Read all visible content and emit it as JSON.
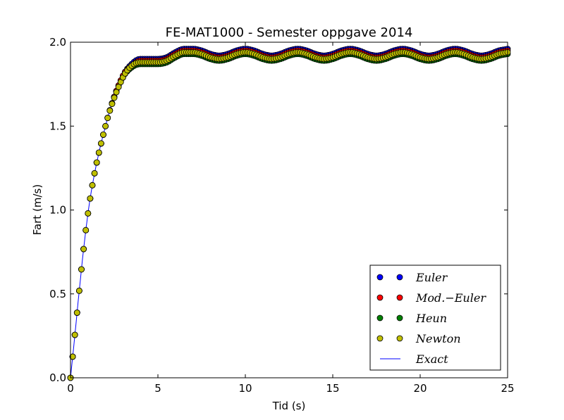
{
  "chart_data": {
    "type": "scatter",
    "title": "FE-MAT1000 - Semester oppgave 2014",
    "xlabel": "Tid (s)",
    "ylabel": "Fart (m/s)",
    "xlim": [
      0,
      25
    ],
    "ylim": [
      0.0,
      2.0
    ],
    "xticks": [
      0,
      5,
      10,
      15,
      20,
      25
    ],
    "xtick_labels": [
      "0",
      "5",
      "10",
      "15",
      "20",
      "25"
    ],
    "yticks": [
      0.0,
      0.5,
      1.0,
      1.5,
      2.0
    ],
    "ytick_labels": [
      "0.0",
      "0.5",
      "1.0",
      "1.5",
      "2.0"
    ],
    "grid": false,
    "legend_position": "lower-right",
    "x": [
      0,
      1,
      2,
      3,
      3.5,
      4,
      4.5,
      5,
      5.5,
      6,
      6.5,
      7,
      7.5,
      8,
      8.5,
      9,
      9.5,
      10,
      10.5,
      11,
      11.5,
      12,
      12.5,
      13,
      13.5,
      14,
      14.5,
      15,
      15.5,
      16,
      16.5,
      17,
      17.5,
      18,
      18.5,
      19,
      19.5,
      20,
      20.5,
      21,
      21.5,
      22,
      22.5,
      23,
      23.5,
      24,
      24.5,
      25
    ],
    "series": [
      {
        "name": "Euler",
        "style": "markers",
        "color": "#0000ff",
        "values": [
          0.0,
          0.98,
          1.5,
          1.8,
          1.87,
          1.9,
          1.9,
          1.9,
          1.91,
          1.94,
          1.96,
          1.96,
          1.95,
          1.93,
          1.92,
          1.93,
          1.95,
          1.96,
          1.95,
          1.93,
          1.92,
          1.93,
          1.95,
          1.96,
          1.95,
          1.93,
          1.92,
          1.93,
          1.95,
          1.96,
          1.95,
          1.93,
          1.92,
          1.93,
          1.95,
          1.96,
          1.95,
          1.93,
          1.92,
          1.93,
          1.95,
          1.96,
          1.95,
          1.93,
          1.92,
          1.93,
          1.95,
          1.96
        ]
      },
      {
        "name": "Mod.−Euler",
        "style": "markers",
        "color": "#ff0000",
        "values": [
          0.0,
          0.98,
          1.5,
          1.8,
          1.86,
          1.89,
          1.89,
          1.89,
          1.9,
          1.93,
          1.95,
          1.95,
          1.94,
          1.92,
          1.91,
          1.92,
          1.94,
          1.95,
          1.94,
          1.92,
          1.91,
          1.92,
          1.94,
          1.95,
          1.94,
          1.92,
          1.91,
          1.92,
          1.94,
          1.95,
          1.94,
          1.92,
          1.91,
          1.92,
          1.94,
          1.95,
          1.94,
          1.92,
          1.91,
          1.92,
          1.94,
          1.95,
          1.94,
          1.92,
          1.91,
          1.92,
          1.94,
          1.95
        ]
      },
      {
        "name": "Heun",
        "style": "markers",
        "color": "#008000",
        "values": [
          0.0,
          0.98,
          1.5,
          1.79,
          1.85,
          1.87,
          1.87,
          1.87,
          1.88,
          1.91,
          1.93,
          1.93,
          1.92,
          1.9,
          1.89,
          1.9,
          1.92,
          1.93,
          1.92,
          1.9,
          1.89,
          1.9,
          1.92,
          1.93,
          1.92,
          1.9,
          1.89,
          1.9,
          1.92,
          1.93,
          1.92,
          1.9,
          1.89,
          1.9,
          1.92,
          1.93,
          1.92,
          1.9,
          1.89,
          1.9,
          1.92,
          1.93,
          1.92,
          1.9,
          1.89,
          1.9,
          1.92,
          1.93
        ]
      },
      {
        "name": "Newton",
        "style": "markers",
        "color": "#bfbf00",
        "values": [
          0.0,
          0.98,
          1.5,
          1.79,
          1.86,
          1.88,
          1.88,
          1.88,
          1.89,
          1.92,
          1.94,
          1.94,
          1.93,
          1.91,
          1.9,
          1.91,
          1.93,
          1.94,
          1.93,
          1.91,
          1.9,
          1.91,
          1.93,
          1.94,
          1.93,
          1.91,
          1.9,
          1.91,
          1.93,
          1.94,
          1.93,
          1.91,
          1.9,
          1.91,
          1.93,
          1.94,
          1.93,
          1.91,
          1.9,
          1.91,
          1.93,
          1.94,
          1.93,
          1.91,
          1.9,
          1.91,
          1.93,
          1.94
        ]
      },
      {
        "name": "Exact",
        "style": "line",
        "color": "#0000ff",
        "values": [
          0.0,
          0.98,
          1.5,
          1.8,
          1.87,
          1.9,
          1.9,
          1.9,
          1.91,
          1.94,
          1.96,
          1.96,
          1.95,
          1.93,
          1.92,
          1.93,
          1.95,
          1.96,
          1.95,
          1.93,
          1.92,
          1.93,
          1.95,
          1.96,
          1.95,
          1.93,
          1.92,
          1.93,
          1.95,
          1.96,
          1.95,
          1.93,
          1.92,
          1.93,
          1.95,
          1.96,
          1.95,
          1.93,
          1.92,
          1.93,
          1.95,
          1.96,
          1.95,
          1.93,
          1.92,
          1.93,
          1.95,
          1.96
        ]
      }
    ]
  }
}
